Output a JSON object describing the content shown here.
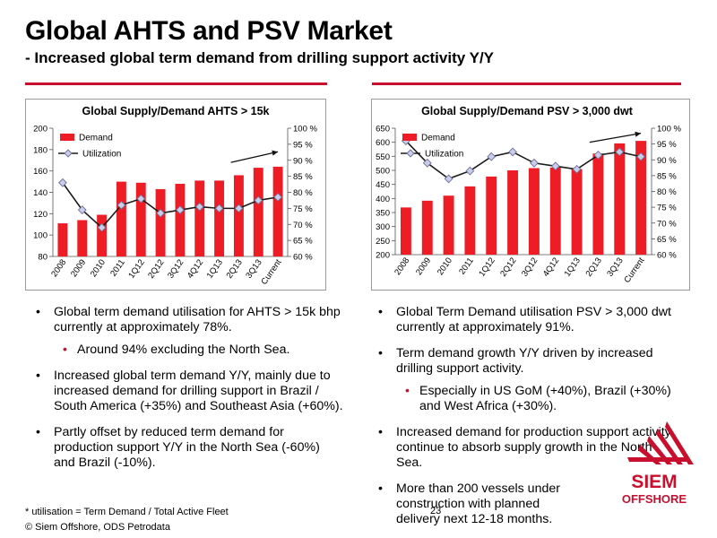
{
  "slide": {
    "title": "Global AHTS and PSV Market",
    "subtitle": "- Increased global term demand from drilling support activity Y/Y",
    "footnote": "* utilisation = Term Demand / Total Active Fleet",
    "page_number": "23",
    "copyright": "© Siem Offshore, ODS Petrodata",
    "brand_color": "#c8102e"
  },
  "logo": {
    "line1": "SIEM",
    "line2": "OFFSHORE",
    "color": "#c8102e"
  },
  "left_bullets": {
    "b1": "Global term demand utilisation for AHTS > 15k bhp currently at approximately 78%.",
    "b1_sub": "Around 94% excluding the North Sea.",
    "b2": "Increased global term demand Y/Y, mainly due to increased demand for drilling support in Brazil / South America (+35%) and Southeast Asia (+60%).",
    "b3": "Partly offset by reduced term demand for production support Y/Y in the North Sea (-60%) and Brazil (-10%)."
  },
  "right_bullets": {
    "b1": "Global Term Demand utilisation PSV > 3,000 dwt currently at approximately 91%.",
    "b2": "Term demand growth Y/Y driven by increased drilling support activity.",
    "b2_sub": "Especially in US GoM (+40%), Brazil (+30%) and West Africa (+30%).",
    "b3": "Increased demand for production support activity continue to absorb supply growth in the North Sea.",
    "b4": "More than 200 vessels under construction with planned delivery next 12-18 months."
  },
  "chart_data": [
    {
      "type": "bar",
      "title": "Global Supply/Demand AHTS > 15k",
      "categories": [
        "2008",
        "2009",
        "2010",
        "2011",
        "1Q12",
        "2Q12",
        "3Q12",
        "4Q12",
        "1Q13",
        "2Q13",
        "3Q13",
        "Current"
      ],
      "series": [
        {
          "name": "Demand",
          "type": "bar",
          "axis": "left",
          "color": "#ee1c25",
          "values": [
            111,
            114,
            119,
            150,
            149,
            143,
            148,
            151,
            151,
            156,
            163,
            164
          ]
        },
        {
          "name": "Utilization",
          "type": "line",
          "axis": "right",
          "color": "#1a1a1a",
          "marker_fill": "#c9cde8",
          "values": [
            83,
            74.5,
            69,
            76,
            78,
            73.5,
            74.5,
            75.5,
            75,
            75,
            77.5,
            78.5
          ]
        }
      ],
      "ylim": [
        80,
        200
      ],
      "yticks": [
        "80",
        "100",
        "120",
        "140",
        "160",
        "180",
        "200"
      ],
      "y2lim": [
        60,
        100
      ],
      "y2ticks": [
        "60 %",
        "65 %",
        "70 %",
        "75 %",
        "80 %",
        "85 %",
        "90 %",
        "95 %",
        "100 %"
      ],
      "legend": "top-left",
      "trend_arrow": {
        "from": {
          "category": "2Q13",
          "value": 168
        },
        "to": {
          "category": "Current",
          "value": 178
        }
      }
    },
    {
      "type": "bar",
      "title": "Global Supply/Demand PSV > 3,000 dwt",
      "categories": [
        "2008",
        "2009",
        "2010",
        "2011",
        "1Q12",
        "2Q12",
        "3Q12",
        "4Q12",
        "1Q13",
        "2Q13",
        "3Q13",
        "Current"
      ],
      "series": [
        {
          "name": "Demand",
          "type": "bar",
          "axis": "left",
          "color": "#ee1c25",
          "values": [
            368,
            392,
            410,
            443,
            478,
            500,
            508,
            510,
            505,
            560,
            596,
            605
          ]
        },
        {
          "name": "Utilization",
          "type": "line",
          "axis": "right",
          "color": "#1a1a1a",
          "marker_fill": "#c9cde8",
          "values": [
            96,
            89,
            84,
            86.5,
            91,
            92.5,
            89,
            88,
            87,
            91.5,
            92.5,
            91
          ]
        }
      ],
      "ylim": [
        200,
        650
      ],
      "yticks": [
        "200",
        "250",
        "300",
        "350",
        "400",
        "450",
        "500",
        "550",
        "600",
        "650"
      ],
      "y2lim": [
        60,
        100
      ],
      "y2ticks": [
        "60 %",
        "65 %",
        "70 %",
        "75 %",
        "80 %",
        "85 %",
        "90 %",
        "95 %",
        "100 %"
      ],
      "legend": "top-left",
      "trend_arrow": {
        "from": {
          "category": "2Q13",
          "value": 600
        },
        "to": {
          "category": "Current",
          "value": 632
        }
      }
    }
  ]
}
